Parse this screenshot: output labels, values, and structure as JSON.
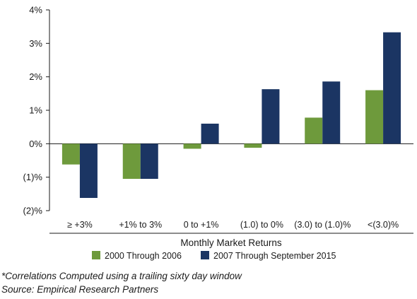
{
  "chart_data": {
    "type": "bar",
    "categories": [
      "≥ +3%",
      "+1% to 3%",
      "0 to +1%",
      "(1.0) to 0%",
      "(3.0) to (1.0)%",
      "<(3.0)%"
    ],
    "series": [
      {
        "name": "2000 Through 2006",
        "color": "#6e9a3c",
        "values": [
          -0.62,
          -1.05,
          -0.15,
          -0.12,
          0.78,
          1.6
        ]
      },
      {
        "name": "2007 Through September 2015",
        "color": "#1b3563",
        "values": [
          -1.62,
          -1.05,
          0.6,
          1.63,
          1.86,
          3.33
        ]
      }
    ],
    "ylim": [
      -2,
      4
    ],
    "yticks": [
      -2,
      -1,
      0,
      1,
      2,
      3,
      4
    ],
    "ytick_labels": [
      "(2)%",
      "(1)%",
      "0%",
      "1%",
      "2%",
      "3%",
      "4%"
    ],
    "xlabel": "Monthly Market Returns",
    "legend_position": "bottom",
    "grid": false
  },
  "footnotes": {
    "note": "*Correlations Computed using a trailing sixty day window",
    "source": "Source: Empirical Research Partners"
  }
}
